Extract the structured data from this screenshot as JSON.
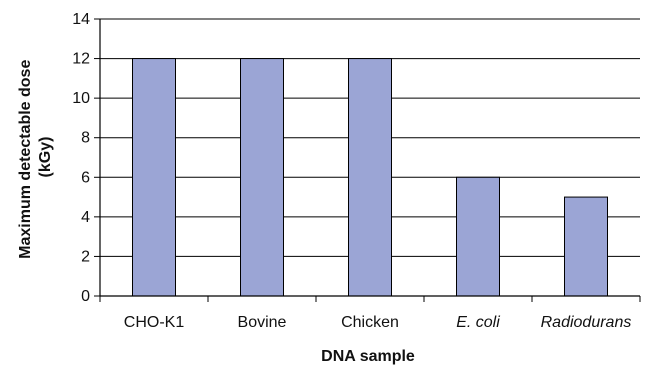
{
  "chart_data": {
    "type": "bar",
    "categories": [
      "CHO-K1",
      "Bovine",
      "Chicken",
      "E. coli",
      "Radiodurans"
    ],
    "category_italic": [
      false,
      false,
      false,
      true,
      true
    ],
    "values": [
      12,
      12,
      12,
      6,
      5
    ],
    "xlabel": "DNA sample",
    "ylabel": [
      "Maximum detectable dose",
      "(kGy)"
    ],
    "ylim": [
      0,
      14
    ],
    "yticks": [
      0,
      2,
      4,
      6,
      8,
      10,
      12,
      14
    ],
    "grid": true,
    "bar_color": "#9BA5D5",
    "bar_edge_color": "#000000"
  }
}
